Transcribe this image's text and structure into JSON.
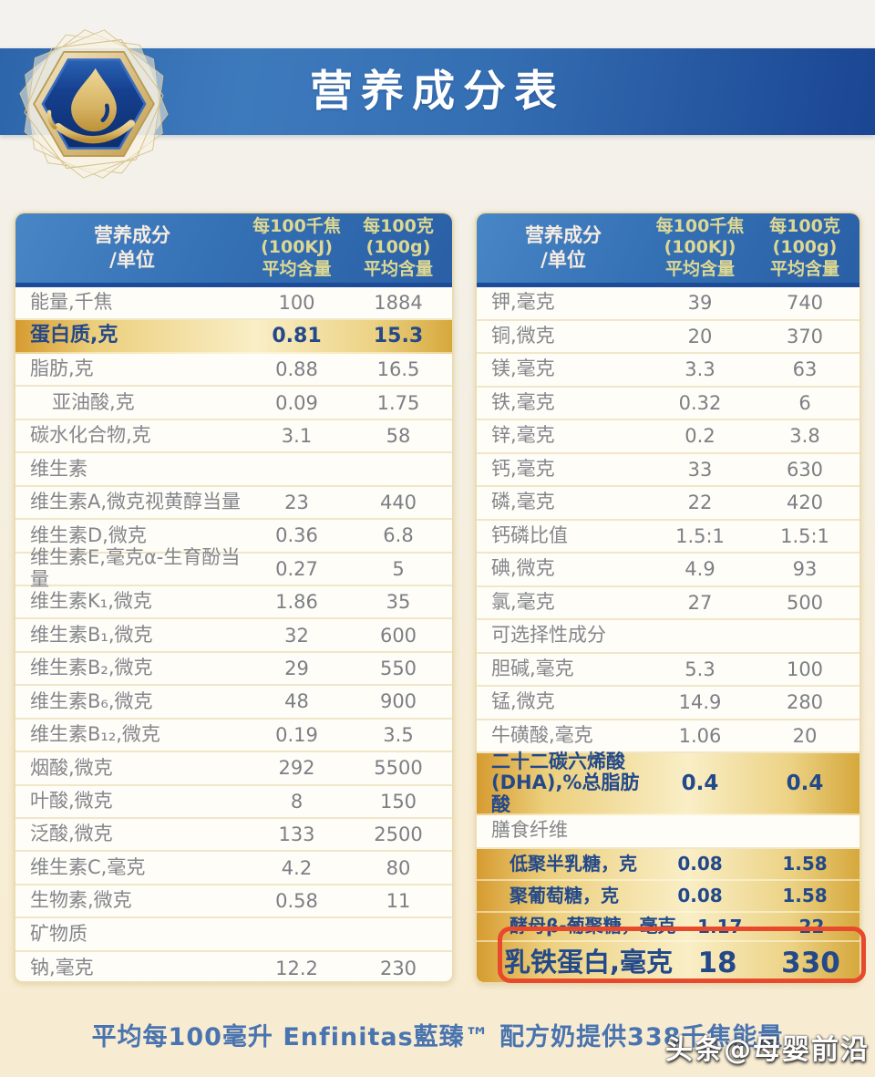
{
  "title": "营养成分表",
  "badge": {
    "icon": "water-drop-hex-badge"
  },
  "colors": {
    "banner_blue_left": "#3d7abc",
    "banner_blue_right": "#1a4593",
    "header_blue": "#2d66ae",
    "gold_dark": "#d69b30",
    "gold_light": "#f9eec6",
    "highlight_text_blue": "#23498a",
    "row_text_gray": "#84868b",
    "red_annotation": "#e8492c",
    "footer_blue": "#4a74af"
  },
  "tables": {
    "left": {
      "header": {
        "component": "营养成分\n/单位",
        "per_100kj": "每100千焦\n(100KJ)\n平均含量",
        "per_100g": "每100克\n(100g)\n平均含量"
      },
      "rows": [
        {
          "label": "能量,千焦",
          "kj": "100",
          "g": "1884",
          "type": "normal"
        },
        {
          "label": "蛋白质,克",
          "kj": "0.81",
          "g": "15.3",
          "type": "gold"
        },
        {
          "label": "脂肪,克",
          "kj": "0.88",
          "g": "16.5",
          "type": "normal"
        },
        {
          "label": "亚油酸,克",
          "kj": "0.09",
          "g": "1.75",
          "type": "normal",
          "indent": true
        },
        {
          "label": "碳水化合物,克",
          "kj": "3.1",
          "g": "58",
          "type": "normal"
        },
        {
          "label": "维生素",
          "kj": "",
          "g": "",
          "type": "section"
        },
        {
          "label": "维生素A,微克视黄醇当量",
          "kj": "23",
          "g": "440",
          "type": "normal"
        },
        {
          "label": "维生素D,微克",
          "kj": "0.36",
          "g": "6.8",
          "type": "normal"
        },
        {
          "label": "维生素E,毫克α-生育酚当量",
          "kj": "0.27",
          "g": "5",
          "type": "normal"
        },
        {
          "label": "维生素K₁,微克",
          "kj": "1.86",
          "g": "35",
          "type": "normal"
        },
        {
          "label": "维生素B₁,微克",
          "kj": "32",
          "g": "600",
          "type": "normal"
        },
        {
          "label": "维生素B₂,微克",
          "kj": "29",
          "g": "550",
          "type": "normal"
        },
        {
          "label": "维生素B₆,微克",
          "kj": "48",
          "g": "900",
          "type": "normal"
        },
        {
          "label": "维生素B₁₂,微克",
          "kj": "0.19",
          "g": "3.5",
          "type": "normal"
        },
        {
          "label": "烟酸,微克",
          "kj": "292",
          "g": "5500",
          "type": "normal"
        },
        {
          "label": "叶酸,微克",
          "kj": "8",
          "g": "150",
          "type": "normal"
        },
        {
          "label": "泛酸,微克",
          "kj": "133",
          "g": "2500",
          "type": "normal"
        },
        {
          "label": "维生素C,毫克",
          "kj": "4.2",
          "g": "80",
          "type": "normal"
        },
        {
          "label": "生物素,微克",
          "kj": "0.58",
          "g": "11",
          "type": "normal"
        },
        {
          "label": "矿物质",
          "kj": "",
          "g": "",
          "type": "section"
        },
        {
          "label": "钠,毫克",
          "kj": "12.2",
          "g": "230",
          "type": "normal"
        }
      ]
    },
    "right": {
      "header": {
        "component": "营养成分\n/单位",
        "per_100kj": "每100千焦\n(100KJ)\n平均含量",
        "per_100g": "每100克\n(100g)\n平均含量"
      },
      "rows": [
        {
          "label": "钾,毫克",
          "kj": "39",
          "g": "740",
          "type": "normal"
        },
        {
          "label": "铜,微克",
          "kj": "20",
          "g": "370",
          "type": "normal"
        },
        {
          "label": "镁,毫克",
          "kj": "3.3",
          "g": "63",
          "type": "normal"
        },
        {
          "label": "铁,毫克",
          "kj": "0.32",
          "g": "6",
          "type": "normal"
        },
        {
          "label": "锌,毫克",
          "kj": "0.2",
          "g": "3.8",
          "type": "normal"
        },
        {
          "label": "钙,毫克",
          "kj": "33",
          "g": "630",
          "type": "normal"
        },
        {
          "label": "磷,毫克",
          "kj": "22",
          "g": "420",
          "type": "normal"
        },
        {
          "label": "钙磷比值",
          "kj": "1.5:1",
          "g": "1.5:1",
          "type": "normal"
        },
        {
          "label": "碘,微克",
          "kj": "4.9",
          "g": "93",
          "type": "normal"
        },
        {
          "label": "氯,毫克",
          "kj": "27",
          "g": "500",
          "type": "normal"
        },
        {
          "label": "可选择性成分",
          "kj": "",
          "g": "",
          "type": "section"
        },
        {
          "label": "胆碱,毫克",
          "kj": "5.3",
          "g": "100",
          "type": "normal"
        },
        {
          "label": "锰,微克",
          "kj": "14.9",
          "g": "280",
          "type": "normal"
        },
        {
          "label": "牛磺酸,毫克",
          "kj": "1.06",
          "g": "20",
          "type": "normal"
        },
        {
          "label": "二十二碳六烯酸\n(DHA),%总脂肪酸",
          "kj": "0.4",
          "g": "0.4",
          "type": "gold_tall"
        },
        {
          "label": "膳食纤维",
          "kj": "",
          "g": "",
          "type": "section"
        },
        {
          "label": "低聚半乳糖，克",
          "kj": "0.08",
          "g": "1.58",
          "type": "gold_fiber"
        },
        {
          "label": "聚葡萄糖，克",
          "kj": "0.08",
          "g": "1.58",
          "type": "gold_fiber"
        },
        {
          "label": "酵母β-葡聚糖，毫克",
          "kj": "1.17",
          "g": "22",
          "type": "gold_fiber fiber3"
        },
        {
          "label": "乳铁蛋白,毫克",
          "kj": "18",
          "g": "330",
          "type": "gold_big"
        }
      ]
    }
  },
  "annotation": {
    "target": "乳铁蛋白 row",
    "shape": "red rounded rectangle"
  },
  "footer": {
    "note": "平均每100毫升 Enfinitas藍臻™ 配方奶提供338千焦能量"
  },
  "watermark": "头条@母婴前沿"
}
